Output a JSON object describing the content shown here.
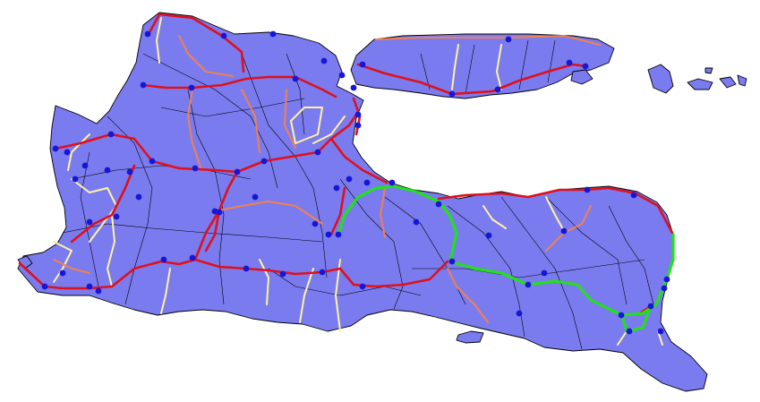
{
  "map": {
    "colors": {
      "background": "#ffffff",
      "land": "#7b7bf0",
      "boundary": "#000000",
      "road_primary": "#e0101a",
      "road_secondary": "#f08050",
      "road_local": "#fff3a0",
      "route_highlight": "#22e01a",
      "node": "#1616d6"
    },
    "legend": [],
    "title": ""
  }
}
